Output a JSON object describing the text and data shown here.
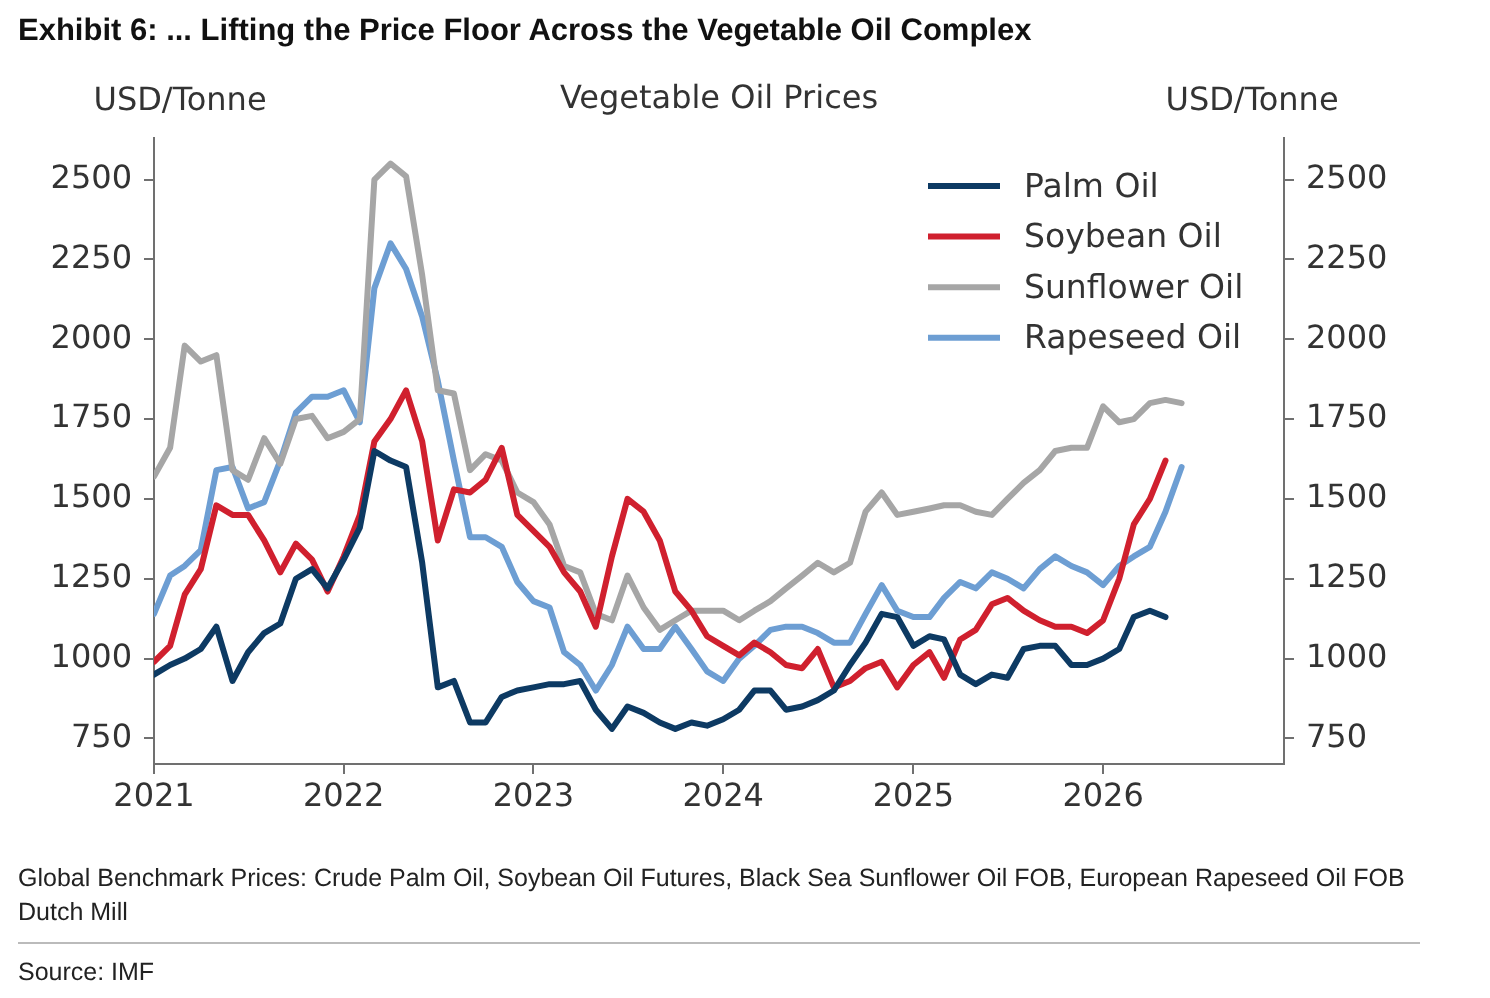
{
  "chart_data": {
    "type": "line",
    "title": "Exhibit 6: ... Lifting the Price Floor Across the Vegetable Oil Complex",
    "subtitle": "Vegetable Oil Prices",
    "ylabel": "USD/Tonne",
    "y2label": "USD/Tonne",
    "annotations": [
      "Global Benchmark Prices: Crude Palm Oil, Soybean Oil Futures, Black Sea Sunflower Oil FOB, European Rapeseed Oil FOB Dutch Mill",
      "Source: IMF"
    ],
    "x": [
      "2021-01",
      "2021-02",
      "2021-03",
      "2021-04",
      "2021-05",
      "2021-06",
      "2021-07",
      "2021-08",
      "2021-09",
      "2021-10",
      "2021-11",
      "2021-12",
      "2022-01",
      "2022-02",
      "2022-03",
      "2022-04",
      "2022-05",
      "2022-06",
      "2022-07",
      "2022-08",
      "2022-09",
      "2022-10",
      "2022-11",
      "2022-12",
      "2023-01",
      "2023-02",
      "2023-03",
      "2023-04",
      "2023-05",
      "2023-06",
      "2023-07",
      "2023-08",
      "2023-09",
      "2023-10",
      "2023-11",
      "2023-12",
      "2024-01",
      "2024-02",
      "2024-03",
      "2024-04",
      "2024-05",
      "2024-06",
      "2024-07",
      "2024-08",
      "2024-09",
      "2024-10",
      "2024-11",
      "2024-12",
      "2025-01",
      "2025-02",
      "2025-03",
      "2025-04",
      "2025-05",
      "2025-06",
      "2025-07",
      "2025-08",
      "2025-09",
      "2025-10",
      "2025-11",
      "2025-12",
      "2026-01",
      "2026-02",
      "2026-03",
      "2026-04",
      "2026-05",
      "2026-06"
    ],
    "series": [
      {
        "name": "Palm Oil",
        "color": "#0d3a63",
        "values": [
          950,
          980,
          1000,
          1030,
          1100,
          930,
          1020,
          1080,
          1110,
          1250,
          1280,
          1220,
          1310,
          1410,
          1650,
          1620,
          1600,
          1300,
          910,
          930,
          800,
          800,
          880,
          900,
          910,
          920,
          920,
          930,
          840,
          780,
          850,
          830,
          800,
          780,
          800,
          790,
          810,
          840,
          900,
          900,
          840,
          850,
          870,
          900,
          980,
          1050,
          1140,
          1130,
          1040,
          1070,
          1060,
          950,
          920,
          950,
          940,
          1030,
          1040,
          1040,
          980,
          980,
          1000,
          1030,
          1130,
          1150,
          1130,
          null
        ]
      },
      {
        "name": "Soybean Oil",
        "color": "#d0202e",
        "values": [
          990,
          1040,
          1200,
          1280,
          1480,
          1450,
          1450,
          1370,
          1270,
          1360,
          1310,
          1210,
          1320,
          1450,
          1680,
          1750,
          1840,
          1680,
          1370,
          1530,
          1520,
          1560,
          1660,
          1450,
          1400,
          1350,
          1270,
          1210,
          1100,
          1320,
          1500,
          1460,
          1370,
          1210,
          1150,
          1070,
          1040,
          1010,
          1050,
          1020,
          980,
          970,
          1030,
          910,
          930,
          970,
          990,
          910,
          980,
          1020,
          940,
          1060,
          1090,
          1170,
          1190,
          1150,
          1120,
          1100,
          1100,
          1080,
          1120,
          1250,
          1420,
          1500,
          1620,
          null
        ]
      },
      {
        "name": "Sunflower Oil",
        "color": "#a6a6a6",
        "values": [
          1570,
          1660,
          1980,
          1930,
          1950,
          1590,
          1560,
          1690,
          1610,
          1750,
          1760,
          1690,
          1710,
          1750,
          2500,
          2550,
          2510,
          2200,
          1840,
          1830,
          1590,
          1640,
          1620,
          1520,
          1490,
          1420,
          1290,
          1270,
          1140,
          1120,
          1260,
          1160,
          1090,
          1120,
          1150,
          1150,
          1150,
          1120,
          1150,
          1180,
          1220,
          1260,
          1300,
          1270,
          1300,
          1460,
          1520,
          1450,
          1460,
          1470,
          1480,
          1480,
          1460,
          1450,
          1500,
          1550,
          1590,
          1650,
          1660,
          1660,
          1790,
          1740,
          1750,
          1800,
          1810,
          1800
        ]
      },
      {
        "name": "Rapeseed Oil",
        "color": "#6d9ed3",
        "values": [
          1140,
          1260,
          1290,
          1340,
          1590,
          1600,
          1470,
          1490,
          1620,
          1770,
          1820,
          1820,
          1840,
          1740,
          2160,
          2300,
          2220,
          2070,
          1870,
          1620,
          1380,
          1380,
          1350,
          1240,
          1180,
          1160,
          1020,
          980,
          900,
          980,
          1100,
          1030,
          1030,
          1100,
          1030,
          960,
          930,
          1000,
          1040,
          1090,
          1100,
          1100,
          1080,
          1050,
          1050,
          1140,
          1230,
          1150,
          1130,
          1130,
          1190,
          1240,
          1220,
          1270,
          1250,
          1220,
          1280,
          1320,
          1290,
          1270,
          1230,
          1290,
          1320,
          1350,
          1460,
          1600
        ]
      }
    ],
    "xlim": [
      "2021-01",
      "2026-12-15"
    ],
    "xticks": [
      "2021",
      "2022",
      "2023",
      "2024",
      "2025",
      "2026"
    ],
    "ylim": [
      670,
      2630
    ],
    "yticks": [
      750,
      1000,
      1250,
      1500,
      1750,
      2000,
      2250,
      2500
    ],
    "y2lim": [
      670,
      2630
    ],
    "y2ticks": [
      750,
      1000,
      1250,
      1500,
      1750,
      2000,
      2250,
      2500
    ],
    "legend": "top right"
  }
}
